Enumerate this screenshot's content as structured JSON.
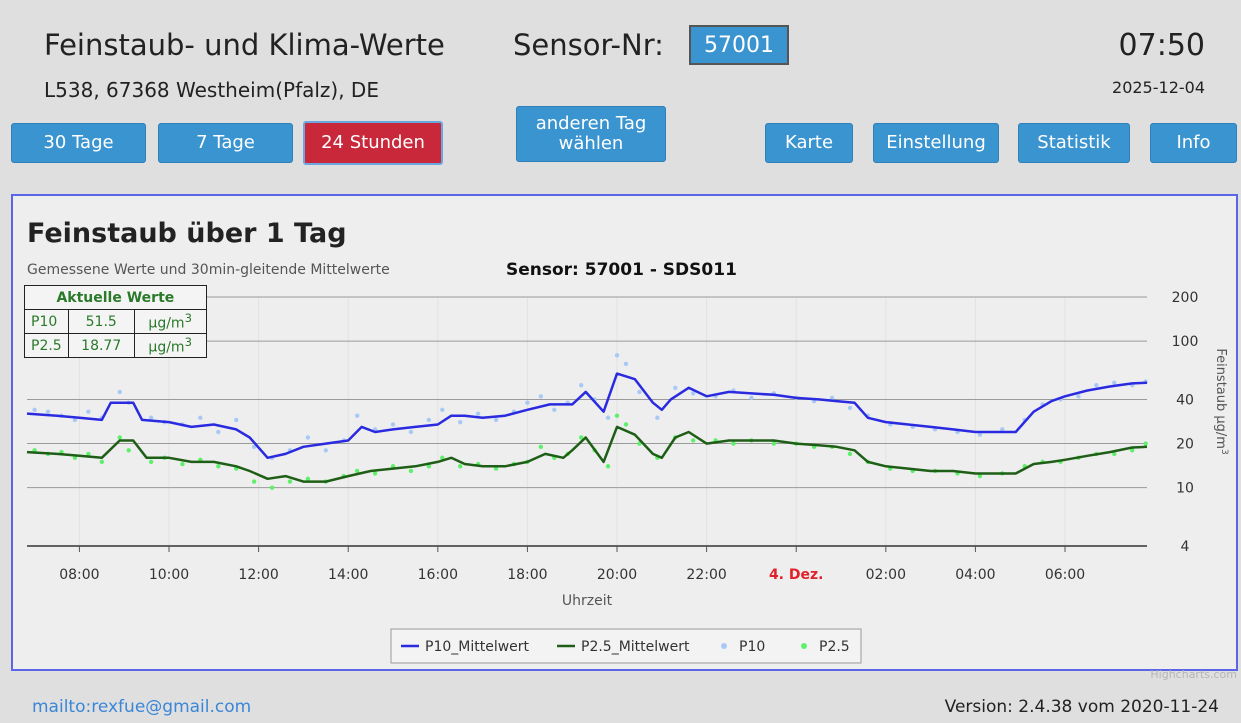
{
  "header": {
    "title": "Feinstaub- und Klima-Werte",
    "sensor_label": "Sensor-Nr:",
    "sensor_value": "57001",
    "time": "07:50",
    "address": "L538, 67368 Westheim(Pfalz), DE",
    "date": "2025-12-04"
  },
  "nav": {
    "days30": "30 Tage",
    "days7": "7 Tage",
    "hours24": "24 Stunden",
    "other_day": "anderen Tag wählen",
    "map": "Karte",
    "settings": "Einstellung",
    "stats": "Statistik",
    "info": "Info",
    "active": "24 Stunden"
  },
  "current_values": {
    "header": "Aktuelle Werte",
    "rows": [
      {
        "name": "P10",
        "value": "51.5",
        "unit": "µg/m"
      },
      {
        "name": "P2.5",
        "value": "18.77",
        "unit": "µg/m"
      }
    ],
    "unit_sup": "3"
  },
  "chart_data": {
    "type": "line",
    "title": "Feinstaub über 1 Tag",
    "subtitle": "Gemessene Werte und 30min-gleitende Mittelwerte",
    "sensor": "Sensor: 57001 - SDS011",
    "xlabel": "Uhrzeit",
    "ylabel": "Feinstaub µg/m",
    "ylabel_sup": "3",
    "y_scale": "log",
    "ylim": [
      4,
      200
    ],
    "y_ticks": [
      4,
      10,
      20,
      40,
      100,
      200
    ],
    "x_ticks": [
      {
        "h": 8,
        "label": "08:00"
      },
      {
        "h": 10,
        "label": "10:00"
      },
      {
        "h": 12,
        "label": "12:00"
      },
      {
        "h": 14,
        "label": "14:00"
      },
      {
        "h": 16,
        "label": "16:00"
      },
      {
        "h": 18,
        "label": "18:00"
      },
      {
        "h": 20,
        "label": "20:00"
      },
      {
        "h": 22,
        "label": "22:00"
      },
      {
        "h": 24,
        "label": "4. Dez.",
        "highlight": true
      },
      {
        "h": 26,
        "label": "02:00"
      },
      {
        "h": 28,
        "label": "04:00"
      },
      {
        "h": 30,
        "label": "06:00"
      }
    ],
    "x_range_hours": [
      6.83,
      31.83
    ],
    "highlight_color": "#e0202a",
    "series": [
      {
        "name": "P10_Mittelwert",
        "kind": "line",
        "color": "#2a2ae0",
        "points": [
          [
            6.83,
            32
          ],
          [
            7.5,
            31
          ],
          [
            8.0,
            30
          ],
          [
            8.5,
            29
          ],
          [
            8.7,
            38
          ],
          [
            9.2,
            38
          ],
          [
            9.4,
            29
          ],
          [
            10.0,
            28
          ],
          [
            10.5,
            26
          ],
          [
            11.0,
            27
          ],
          [
            11.5,
            25
          ],
          [
            11.8,
            22
          ],
          [
            12.2,
            16
          ],
          [
            12.6,
            17
          ],
          [
            13.0,
            19
          ],
          [
            13.5,
            20
          ],
          [
            14.0,
            21
          ],
          [
            14.3,
            26
          ],
          [
            14.6,
            24
          ],
          [
            15.0,
            25
          ],
          [
            15.5,
            26
          ],
          [
            16.0,
            27
          ],
          [
            16.3,
            31
          ],
          [
            16.6,
            31
          ],
          [
            17.0,
            30
          ],
          [
            17.5,
            31
          ],
          [
            18.0,
            34
          ],
          [
            18.5,
            37
          ],
          [
            19.0,
            37
          ],
          [
            19.3,
            45
          ],
          [
            19.7,
            33
          ],
          [
            20.0,
            60
          ],
          [
            20.4,
            55
          ],
          [
            20.8,
            38
          ],
          [
            21.0,
            34
          ],
          [
            21.2,
            40
          ],
          [
            21.6,
            48
          ],
          [
            22.0,
            42
          ],
          [
            22.5,
            45
          ],
          [
            23.0,
            44
          ],
          [
            23.5,
            43
          ],
          [
            24.0,
            41
          ],
          [
            24.5,
            40
          ],
          [
            24.9,
            39
          ],
          [
            25.3,
            38
          ],
          [
            25.6,
            30
          ],
          [
            26.0,
            28
          ],
          [
            26.5,
            27
          ],
          [
            27.0,
            26
          ],
          [
            27.5,
            25
          ],
          [
            28.0,
            24
          ],
          [
            28.5,
            24
          ],
          [
            28.9,
            24
          ],
          [
            29.3,
            33
          ],
          [
            29.7,
            39
          ],
          [
            30.0,
            42
          ],
          [
            30.5,
            46
          ],
          [
            31.0,
            49
          ],
          [
            31.5,
            51.5
          ],
          [
            31.83,
            52
          ]
        ]
      },
      {
        "name": "P2.5_Mittelwert",
        "kind": "line",
        "color": "#1f5e16",
        "points": [
          [
            6.83,
            17.5
          ],
          [
            7.5,
            17
          ],
          [
            8.0,
            16.5
          ],
          [
            8.5,
            16
          ],
          [
            8.9,
            21
          ],
          [
            9.2,
            21
          ],
          [
            9.5,
            16
          ],
          [
            10.0,
            16
          ],
          [
            10.5,
            15
          ],
          [
            11.0,
            15
          ],
          [
            11.5,
            14
          ],
          [
            11.8,
            13
          ],
          [
            12.2,
            11.5
          ],
          [
            12.6,
            12
          ],
          [
            13.0,
            11
          ],
          [
            13.5,
            11
          ],
          [
            14.0,
            12
          ],
          [
            14.5,
            13
          ],
          [
            15.0,
            13.5
          ],
          [
            15.5,
            14
          ],
          [
            16.0,
            15
          ],
          [
            16.3,
            16
          ],
          [
            16.6,
            14.5
          ],
          [
            17.0,
            14
          ],
          [
            17.5,
            14
          ],
          [
            18.0,
            15
          ],
          [
            18.4,
            17
          ],
          [
            18.8,
            16
          ],
          [
            19.0,
            18
          ],
          [
            19.3,
            22
          ],
          [
            19.7,
            15
          ],
          [
            20.0,
            26
          ],
          [
            20.4,
            23
          ],
          [
            20.8,
            17
          ],
          [
            21.0,
            16
          ],
          [
            21.3,
            22
          ],
          [
            21.6,
            24
          ],
          [
            22.0,
            20
          ],
          [
            22.5,
            21
          ],
          [
            23.0,
            21
          ],
          [
            23.5,
            21
          ],
          [
            24.0,
            20
          ],
          [
            24.5,
            19.5
          ],
          [
            24.9,
            19
          ],
          [
            25.3,
            18
          ],
          [
            25.6,
            15
          ],
          [
            26.0,
            14
          ],
          [
            26.5,
            13.5
          ],
          [
            27.0,
            13
          ],
          [
            27.5,
            13
          ],
          [
            28.0,
            12.5
          ],
          [
            28.5,
            12.5
          ],
          [
            28.9,
            12.5
          ],
          [
            29.3,
            14.5
          ],
          [
            29.7,
            15
          ],
          [
            30.0,
            15.5
          ],
          [
            30.5,
            16.5
          ],
          [
            31.0,
            17.5
          ],
          [
            31.5,
            18.8
          ],
          [
            31.83,
            19
          ]
        ]
      },
      {
        "name": "P10",
        "kind": "scatter",
        "color": "#a9c9f5",
        "points": [
          [
            7.0,
            34
          ],
          [
            7.3,
            33
          ],
          [
            7.6,
            31
          ],
          [
            7.9,
            29
          ],
          [
            8.2,
            33
          ],
          [
            8.5,
            30
          ],
          [
            8.9,
            45
          ],
          [
            9.1,
            38
          ],
          [
            9.6,
            30
          ],
          [
            9.9,
            28
          ],
          [
            10.3,
            27
          ],
          [
            10.7,
            30
          ],
          [
            11.1,
            24
          ],
          [
            11.5,
            29
          ],
          [
            11.9,
            19
          ],
          [
            12.3,
            16
          ],
          [
            12.7,
            18
          ],
          [
            13.1,
            22
          ],
          [
            13.5,
            18
          ],
          [
            13.9,
            21
          ],
          [
            14.2,
            31
          ],
          [
            14.6,
            25
          ],
          [
            15.0,
            27
          ],
          [
            15.4,
            24
          ],
          [
            15.8,
            29
          ],
          [
            16.1,
            34
          ],
          [
            16.5,
            28
          ],
          [
            16.9,
            32
          ],
          [
            17.3,
            29
          ],
          [
            17.7,
            33
          ],
          [
            18.0,
            38
          ],
          [
            18.3,
            42
          ],
          [
            18.6,
            34
          ],
          [
            18.9,
            38
          ],
          [
            19.2,
            50
          ],
          [
            19.5,
            40
          ],
          [
            19.8,
            30
          ],
          [
            20.0,
            80
          ],
          [
            20.2,
            70
          ],
          [
            20.5,
            45
          ],
          [
            20.9,
            30
          ],
          [
            21.3,
            48
          ],
          [
            21.7,
            44
          ],
          [
            22.2,
            42
          ],
          [
            22.6,
            46
          ],
          [
            23.0,
            41
          ],
          [
            23.5,
            44
          ],
          [
            24.0,
            41
          ],
          [
            24.4,
            39
          ],
          [
            24.8,
            41
          ],
          [
            25.2,
            35
          ],
          [
            25.6,
            31
          ],
          [
            26.1,
            27
          ],
          [
            26.6,
            26
          ],
          [
            27.1,
            25
          ],
          [
            27.6,
            24
          ],
          [
            28.1,
            23
          ],
          [
            28.6,
            25
          ],
          [
            29.1,
            29
          ],
          [
            29.5,
            37
          ],
          [
            29.9,
            40
          ],
          [
            30.3,
            42
          ],
          [
            30.7,
            50
          ],
          [
            31.1,
            52
          ],
          [
            31.5,
            50
          ],
          [
            31.8,
            53
          ]
        ]
      },
      {
        "name": "P2.5",
        "kind": "scatter",
        "color": "#5ef06a",
        "points": [
          [
            7.0,
            18
          ],
          [
            7.3,
            17
          ],
          [
            7.6,
            17.5
          ],
          [
            7.9,
            16
          ],
          [
            8.2,
            17
          ],
          [
            8.5,
            15
          ],
          [
            8.9,
            22
          ],
          [
            9.1,
            18
          ],
          [
            9.6,
            15
          ],
          [
            9.9,
            16
          ],
          [
            10.3,
            14.5
          ],
          [
            10.7,
            15.5
          ],
          [
            11.1,
            14
          ],
          [
            11.5,
            13.5
          ],
          [
            11.9,
            11
          ],
          [
            12.3,
            10
          ],
          [
            12.7,
            11
          ],
          [
            13.1,
            11.5
          ],
          [
            13.5,
            11
          ],
          [
            13.9,
            12
          ],
          [
            14.2,
            13
          ],
          [
            14.6,
            12.5
          ],
          [
            15.0,
            14
          ],
          [
            15.4,
            13
          ],
          [
            15.8,
            14
          ],
          [
            16.1,
            16
          ],
          [
            16.5,
            14
          ],
          [
            16.9,
            14.5
          ],
          [
            17.3,
            13.5
          ],
          [
            17.7,
            14.5
          ],
          [
            18.0,
            15
          ],
          [
            18.3,
            19
          ],
          [
            18.6,
            16
          ],
          [
            18.9,
            17
          ],
          [
            19.2,
            22
          ],
          [
            19.5,
            18
          ],
          [
            19.8,
            14
          ],
          [
            20.0,
            31
          ],
          [
            20.2,
            27
          ],
          [
            20.5,
            20
          ],
          [
            20.9,
            16
          ],
          [
            21.3,
            22
          ],
          [
            21.7,
            21
          ],
          [
            22.2,
            21
          ],
          [
            22.6,
            20
          ],
          [
            23.0,
            21
          ],
          [
            23.5,
            20
          ],
          [
            24.0,
            20
          ],
          [
            24.4,
            19
          ],
          [
            24.8,
            19
          ],
          [
            25.2,
            17
          ],
          [
            25.6,
            15
          ],
          [
            26.1,
            13.5
          ],
          [
            26.6,
            13
          ],
          [
            27.1,
            13
          ],
          [
            27.6,
            12.5
          ],
          [
            28.1,
            12
          ],
          [
            28.6,
            12.5
          ],
          [
            29.1,
            14
          ],
          [
            29.5,
            15
          ],
          [
            29.9,
            15
          ],
          [
            30.3,
            16
          ],
          [
            30.7,
            17
          ],
          [
            31.1,
            17
          ],
          [
            31.5,
            18
          ],
          [
            31.8,
            20
          ]
        ]
      }
    ]
  },
  "credits": "Highcharts.com",
  "footer": {
    "mailto": "mailto:rexfue@gmail.com",
    "version": "Version: 2.4.38 vom 2020-11-24"
  }
}
